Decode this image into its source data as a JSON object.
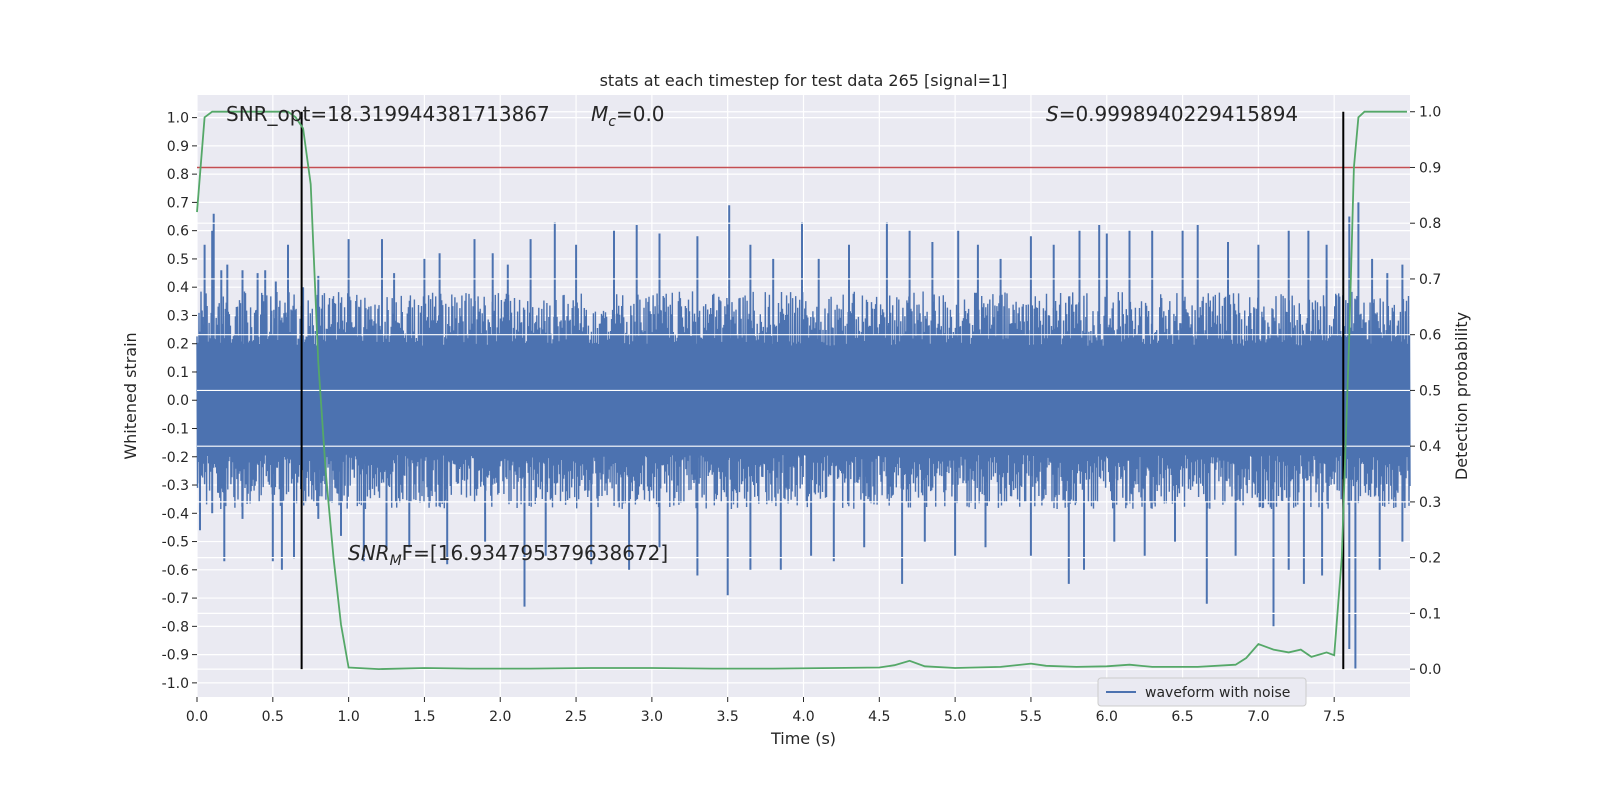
{
  "chart_data": {
    "type": "line",
    "title": "stats at each timestep for test data 265 [signal=1]",
    "xlabel": "Time (s)",
    "ylabel_left": "Whitened strain",
    "ylabel_right": "Detection probability",
    "xlim": [
      0.0,
      8.0
    ],
    "ylim_left": [
      -1.05,
      1.08
    ],
    "ylim_right": [
      -0.05,
      1.03
    ],
    "xticks": [
      "0.0",
      "0.5",
      "1.0",
      "1.5",
      "2.0",
      "2.5",
      "3.0",
      "3.5",
      "4.0",
      "4.5",
      "5.0",
      "5.5",
      "6.0",
      "6.5",
      "7.0",
      "7.5"
    ],
    "yticks_left": [
      "-1.0",
      "-0.9",
      "-0.8",
      "-0.7",
      "-0.6",
      "-0.5",
      "-0.4",
      "-0.3",
      "-0.2",
      "-0.1",
      "0.0",
      "0.1",
      "0.2",
      "0.3",
      "0.4",
      "0.5",
      "0.6",
      "0.7",
      "0.8",
      "0.9",
      "1.0"
    ],
    "yticks_right": [
      "0.0",
      "0.1",
      "0.2",
      "0.3",
      "0.4",
      "0.5",
      "0.6",
      "0.7",
      "0.8",
      "0.9",
      "1.0"
    ],
    "grid": true,
    "legend": {
      "placement": "lower-right",
      "entries": [
        "waveform with noise"
      ]
    },
    "annotations": {
      "snr_opt": "SNR_opt=18.319944381713867",
      "mc_symbol": "M",
      "mc_sub": "c",
      "mc_value": "=0.0",
      "s_symbol": "S",
      "s_value": "=0.9998940229415894",
      "snr_mf_main": "SNR",
      "snr_mf_sub": "M",
      "snr_mf_rest": "F=[16.934795379638672]"
    },
    "threshold_right": 0.9,
    "vlines_x": [
      0.69,
      7.56
    ],
    "vline_ymin_right": 0.0,
    "vline_ymax_right": 1.0,
    "waveform": {
      "name": "waveform with noise",
      "x_start": 0.0,
      "x_end": 8.0,
      "core_amplitude": 0.35,
      "peaks_up": [
        [
          0.05,
          0.55
        ],
        [
          0.1,
          0.6
        ],
        [
          0.11,
          0.66
        ],
        [
          0.16,
          0.46
        ],
        [
          0.2,
          0.48
        ],
        [
          0.3,
          0.46
        ],
        [
          0.4,
          0.45
        ],
        [
          0.45,
          0.46
        ],
        [
          0.52,
          0.42
        ],
        [
          0.6,
          0.55
        ],
        [
          0.7,
          0.4
        ],
        [
          0.8,
          0.44
        ],
        [
          1.0,
          0.57
        ],
        [
          1.22,
          0.57
        ],
        [
          1.3,
          0.45
        ],
        [
          1.5,
          0.5
        ],
        [
          1.6,
          0.52
        ],
        [
          1.83,
          0.57
        ],
        [
          1.95,
          0.52
        ],
        [
          2.05,
          0.48
        ],
        [
          2.2,
          0.57
        ],
        [
          2.36,
          0.63
        ],
        [
          2.5,
          0.55
        ],
        [
          2.75,
          0.6
        ],
        [
          2.9,
          0.62
        ],
        [
          3.05,
          0.59
        ],
        [
          3.3,
          0.58
        ],
        [
          3.51,
          0.69
        ],
        [
          3.65,
          0.55
        ],
        [
          3.8,
          0.5
        ],
        [
          3.99,
          0.63
        ],
        [
          4.1,
          0.5
        ],
        [
          4.3,
          0.55
        ],
        [
          4.55,
          0.63
        ],
        [
          4.7,
          0.6
        ],
        [
          4.85,
          0.56
        ],
        [
          5.02,
          0.6
        ],
        [
          5.15,
          0.55
        ],
        [
          5.3,
          0.5
        ],
        [
          5.5,
          0.58
        ],
        [
          5.65,
          0.55
        ],
        [
          5.82,
          0.6
        ],
        [
          5.95,
          0.62
        ],
        [
          6.0,
          0.59
        ],
        [
          6.15,
          0.6
        ],
        [
          6.3,
          0.6
        ],
        [
          6.5,
          0.6
        ],
        [
          6.6,
          0.62
        ],
        [
          6.8,
          0.56
        ],
        [
          7.0,
          0.55
        ],
        [
          7.2,
          0.6
        ],
        [
          7.33,
          0.6
        ],
        [
          7.45,
          0.55
        ],
        [
          7.6,
          0.65
        ],
        [
          7.66,
          0.7
        ],
        [
          7.75,
          0.5
        ],
        [
          7.85,
          0.45
        ],
        [
          7.95,
          0.48
        ]
      ],
      "peaks_down": [
        [
          0.02,
          -0.46
        ],
        [
          0.1,
          -0.4
        ],
        [
          0.18,
          -0.57
        ],
        [
          0.3,
          -0.42
        ],
        [
          0.5,
          -0.57
        ],
        [
          0.56,
          -0.6
        ],
        [
          0.64,
          -0.56
        ],
        [
          0.8,
          -0.42
        ],
        [
          0.95,
          -0.48
        ],
        [
          1.1,
          -0.57
        ],
        [
          1.25,
          -0.52
        ],
        [
          1.4,
          -0.52
        ],
        [
          1.65,
          -0.58
        ],
        [
          1.9,
          -0.5
        ],
        [
          2.16,
          -0.73
        ],
        [
          2.3,
          -0.55
        ],
        [
          2.6,
          -0.58
        ],
        [
          2.85,
          -0.6
        ],
        [
          3.05,
          -0.52
        ],
        [
          3.3,
          -0.62
        ],
        [
          3.5,
          -0.69
        ],
        [
          3.65,
          -0.6
        ],
        [
          3.85,
          -0.6
        ],
        [
          4.05,
          -0.55
        ],
        [
          4.2,
          -0.57
        ],
        [
          4.4,
          -0.52
        ],
        [
          4.65,
          -0.65
        ],
        [
          4.8,
          -0.5
        ],
        [
          5.0,
          -0.55
        ],
        [
          5.2,
          -0.52
        ],
        [
          5.5,
          -0.55
        ],
        [
          5.75,
          -0.65
        ],
        [
          5.85,
          -0.6
        ],
        [
          6.05,
          -0.5
        ],
        [
          6.25,
          -0.55
        ],
        [
          6.45,
          -0.5
        ],
        [
          6.66,
          -0.72
        ],
        [
          6.85,
          -0.55
        ],
        [
          7.1,
          -0.8
        ],
        [
          7.2,
          -0.6
        ],
        [
          7.3,
          -0.65
        ],
        [
          7.42,
          -0.62
        ],
        [
          7.6,
          -0.88
        ],
        [
          7.64,
          -0.95
        ],
        [
          7.8,
          -0.6
        ],
        [
          7.95,
          -0.5
        ]
      ]
    },
    "probability": {
      "color": "#55a868",
      "x": [
        0.0,
        0.05,
        0.1,
        0.2,
        0.3,
        0.4,
        0.5,
        0.55,
        0.6,
        0.65,
        0.7,
        0.75,
        0.8,
        0.85,
        0.9,
        0.95,
        1.0,
        1.2,
        1.5,
        1.8,
        2.2,
        2.6,
        3.0,
        3.4,
        3.8,
        4.2,
        4.5,
        4.6,
        4.7,
        4.8,
        5.0,
        5.3,
        5.5,
        5.6,
        5.8,
        6.0,
        6.15,
        6.3,
        6.6,
        6.85,
        6.92,
        7.0,
        7.1,
        7.2,
        7.28,
        7.35,
        7.45,
        7.5,
        7.55,
        7.6,
        7.63,
        7.66,
        7.7,
        7.8,
        7.9,
        7.98
      ],
      "y": [
        0.82,
        0.99,
        1.0,
        1.0,
        1.0,
        1.0,
        1.0,
        1.0,
        1.0,
        0.99,
        0.97,
        0.87,
        0.55,
        0.35,
        0.2,
        0.08,
        0.003,
        0.0,
        0.002,
        0.001,
        0.001,
        0.002,
        0.002,
        0.001,
        0.001,
        0.002,
        0.003,
        0.007,
        0.015,
        0.005,
        0.002,
        0.004,
        0.01,
        0.006,
        0.004,
        0.005,
        0.008,
        0.004,
        0.004,
        0.008,
        0.02,
        0.045,
        0.035,
        0.03,
        0.035,
        0.022,
        0.03,
        0.025,
        0.2,
        0.6,
        0.9,
        0.99,
        1.0,
        1.0,
        1.0,
        1.0
      ]
    }
  }
}
